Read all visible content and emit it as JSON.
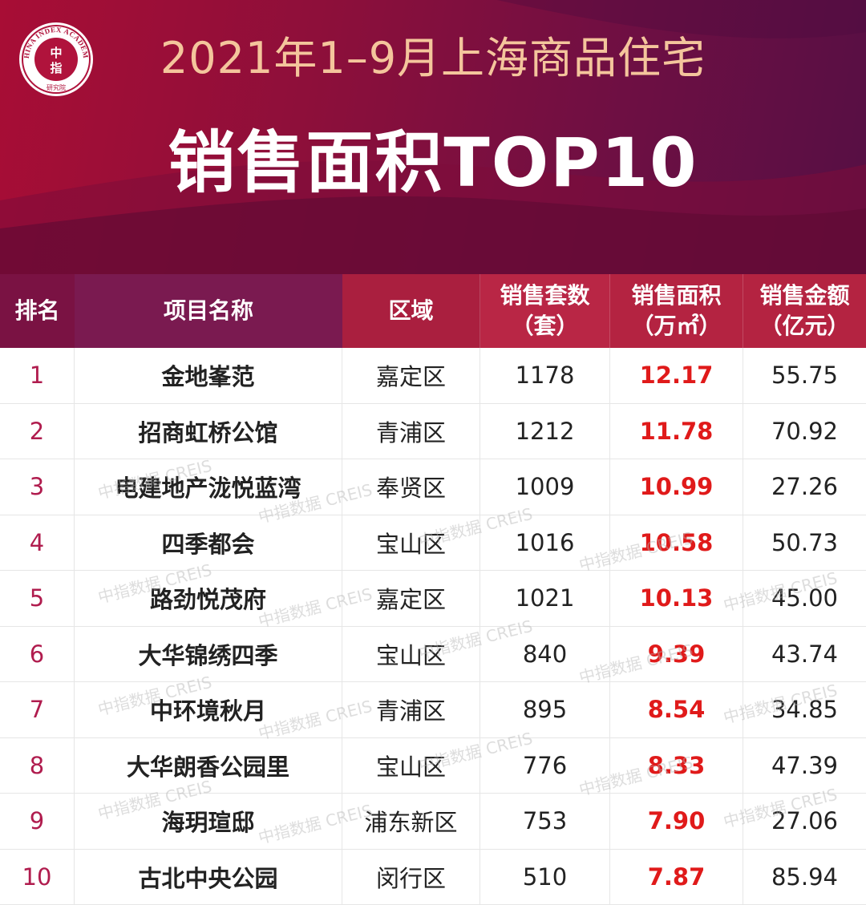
{
  "header": {
    "line1": "2021年1–9月上海商品住宅",
    "line2": "销售面积TOP10",
    "logo": {
      "ring_text": "CHINA INDEX ACADEMY",
      "center_top": "中",
      "center_bottom": "指",
      "bottom_text": "研究院"
    }
  },
  "table": {
    "columns": {
      "rank": "排名",
      "name": "项目名称",
      "area": "区域",
      "units_l1": "销售套数",
      "units_l2": "（套）",
      "size_l1": "销售面积",
      "size_l2": "（万㎡）",
      "amount_l1": "销售金额",
      "amount_l2": "（亿元）"
    },
    "rows": [
      {
        "rank": "1",
        "name": "金地峯范",
        "area": "嘉定区",
        "units": "1178",
        "size": "12.17",
        "amount": "55.75"
      },
      {
        "rank": "2",
        "name": "招商虹桥公馆",
        "area": "青浦区",
        "units": "1212",
        "size": "11.78",
        "amount": "70.92"
      },
      {
        "rank": "3",
        "name": "电建地产泷悦蓝湾",
        "area": "奉贤区",
        "units": "1009",
        "size": "10.99",
        "amount": "27.26"
      },
      {
        "rank": "4",
        "name": "四季都会",
        "area": "宝山区",
        "units": "1016",
        "size": "10.58",
        "amount": "50.73"
      },
      {
        "rank": "5",
        "name": "路劲悦茂府",
        "area": "嘉定区",
        "units": "1021",
        "size": "10.13",
        "amount": "45.00"
      },
      {
        "rank": "6",
        "name": "大华锦绣四季",
        "area": "宝山区",
        "units": "840",
        "size": "9.39",
        "amount": "43.74"
      },
      {
        "rank": "7",
        "name": "中环境秋月",
        "area": "青浦区",
        "units": "895",
        "size": "8.54",
        "amount": "34.85"
      },
      {
        "rank": "8",
        "name": "大华朗香公园里",
        "area": "宝山区",
        "units": "776",
        "size": "8.33",
        "amount": "47.39"
      },
      {
        "rank": "9",
        "name": "海玥瑄邸",
        "area": "浦东新区",
        "units": "753",
        "size": "7.90",
        "amount": "27.06"
      },
      {
        "rank": "10",
        "name": "古北中央公园",
        "area": "闵行区",
        "units": "510",
        "size": "7.87",
        "amount": "85.94"
      }
    ]
  },
  "watermark": "中指数据 CREIS"
}
